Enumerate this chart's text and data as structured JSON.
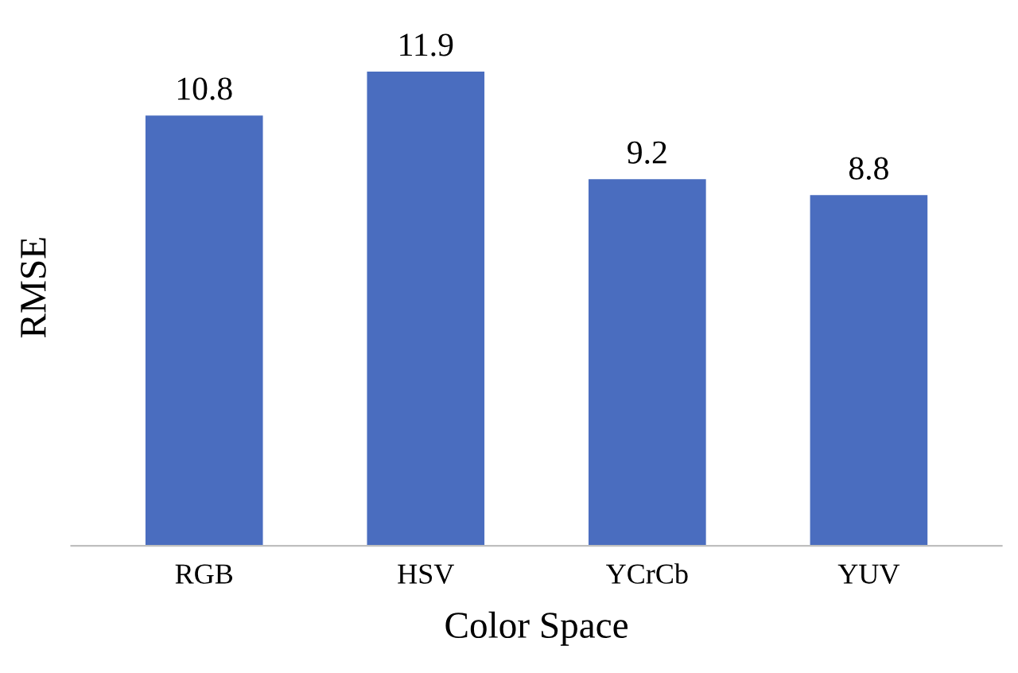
{
  "chart_data": {
    "type": "bar",
    "xlabel": "Color Space",
    "ylabel": "RMSE",
    "categories": [
      "RGB",
      "HSV",
      "YCrCb",
      "YUV"
    ],
    "values": [
      10.8,
      11.9,
      9.2,
      8.8
    ],
    "color": "#4a6dbf",
    "data_labels": true,
    "tick_labels": "x",
    "grid": false,
    "legend": false
  }
}
